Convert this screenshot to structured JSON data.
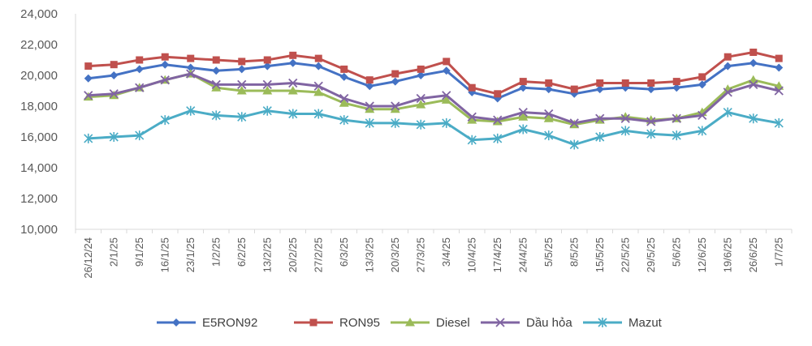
{
  "chart_data": {
    "type": "line",
    "title": "",
    "xlabel": "",
    "ylabel": "",
    "ylim": [
      10000,
      24000
    ],
    "yticks": [
      10000,
      12000,
      14000,
      16000,
      18000,
      20000,
      22000,
      24000
    ],
    "ytick_labels": [
      "10,000",
      "12,000",
      "14,000",
      "16,000",
      "18,000",
      "20,000",
      "22,000",
      "24,000"
    ],
    "grid": false,
    "legend_position": "bottom",
    "categories": [
      "26/12/24",
      "2/1/25",
      "9/1/25",
      "16/1/25",
      "23/1/25",
      "1/2/25",
      "6/2/25",
      "13/2/25",
      "20/2/25",
      "27/2/25",
      "6/3/25",
      "13/3/25",
      "20/3/25",
      "27/3/25",
      "3/4/25",
      "10/4/25",
      "17/4/25",
      "24/4/25",
      "5/5/25",
      "8/5/25",
      "15/5/25",
      "22/5/25",
      "29/5/25",
      "5/6/25",
      "12/6/25",
      "19/6/25",
      "26/6/25",
      "1/7/25"
    ],
    "series": [
      {
        "name": "E5RON92",
        "color": "#4472C4",
        "marker": "diamond",
        "values": [
          19800,
          20000,
          20400,
          20700,
          20500,
          20300,
          20400,
          20600,
          20800,
          20600,
          19900,
          19300,
          19600,
          20000,
          20300,
          18900,
          18500,
          19200,
          19100,
          18800,
          19100,
          19200,
          19100,
          19200,
          19400,
          20600,
          20800,
          20500
        ]
      },
      {
        "name": "RON95",
        "color": "#C0504D",
        "marker": "square",
        "values": [
          20600,
          20700,
          21000,
          21200,
          21100,
          21000,
          20900,
          21000,
          21300,
          21100,
          20400,
          19700,
          20100,
          20400,
          20900,
          19200,
          18800,
          19600,
          19500,
          19100,
          19500,
          19500,
          19500,
          19600,
          19900,
          21200,
          21500,
          21100
        ]
      },
      {
        "name": "Diesel",
        "color": "#9BBB59",
        "marker": "triangle",
        "values": [
          18600,
          18700,
          19200,
          19700,
          20100,
          19200,
          19000,
          19000,
          19000,
          18900,
          18200,
          17800,
          17800,
          18100,
          18400,
          17100,
          17000,
          17300,
          17200,
          16800,
          17100,
          17300,
          17100,
          17200,
          17600,
          19100,
          19700,
          19300
        ]
      },
      {
        "name": "Dầu hỏa",
        "color": "#8064A2",
        "marker": "x",
        "values": [
          18700,
          18800,
          19200,
          19700,
          20100,
          19400,
          19400,
          19400,
          19500,
          19300,
          18500,
          18000,
          18000,
          18500,
          18700,
          17300,
          17100,
          17600,
          17500,
          16900,
          17200,
          17200,
          17000,
          17200,
          17400,
          18900,
          19400,
          19000
        ]
      },
      {
        "name": "Mazut",
        "color": "#4BACC6",
        "marker": "star",
        "values": [
          15900,
          16000,
          16100,
          17100,
          17700,
          17400,
          17300,
          17700,
          17500,
          17500,
          17100,
          16900,
          16900,
          16800,
          16900,
          15800,
          15900,
          16500,
          16100,
          15500,
          16000,
          16400,
          16200,
          16100,
          16400,
          17600,
          17200,
          16900
        ]
      }
    ]
  }
}
